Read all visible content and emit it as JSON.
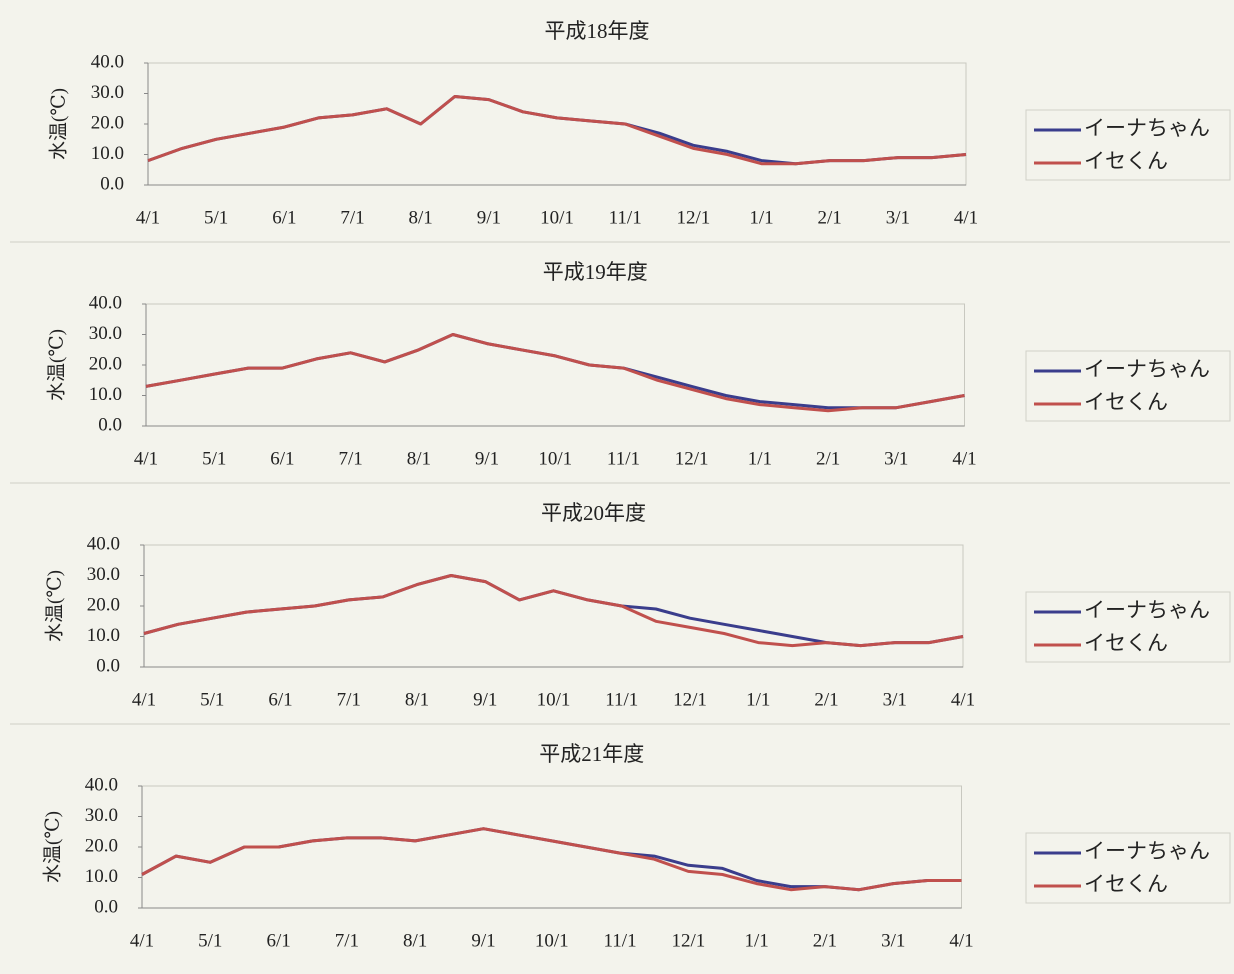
{
  "chart_data": [
    {
      "type": "line",
      "title": "平成18年度",
      "ylabel": "水温(℃)",
      "categories": [
        "4/1",
        null,
        "5/1",
        null,
        "6/1",
        null,
        "7/1",
        null,
        "8/1",
        null,
        "9/1",
        null,
        "10/1",
        null,
        "11/1",
        null,
        "12/1",
        null,
        "1/1",
        null,
        "2/1",
        null,
        "3/1",
        null,
        "4/1"
      ],
      "series": [
        {
          "name": "イーナちゃん",
          "color": "#3a3d8c",
          "values": [
            8,
            12,
            15,
            17,
            19,
            22,
            23,
            25,
            20,
            29,
            28,
            24,
            22,
            21,
            20,
            17,
            13,
            11,
            8,
            7,
            8,
            8,
            9,
            9,
            10
          ]
        },
        {
          "name": "イセくん",
          "color": "#c0504d",
          "values": [
            8,
            12,
            15,
            17,
            19,
            22,
            23,
            25,
            20,
            29,
            28,
            24,
            22,
            21,
            20,
            16,
            12,
            10,
            7,
            7,
            8,
            8,
            9,
            9,
            10
          ]
        }
      ],
      "ylim": [
        0,
        40
      ],
      "yticks": [
        {
          "value": 0,
          "label": "0.0"
        },
        {
          "value": 10,
          "label": "10.0"
        },
        {
          "value": 20,
          "label": "20.0"
        },
        {
          "value": 30,
          "label": "30.0"
        },
        {
          "value": 40,
          "label": "40.0"
        }
      ],
      "legend": "right"
    },
    {
      "type": "line",
      "title": "平成19年度",
      "ylabel": "水温(℃)",
      "categories": [
        "4/1",
        null,
        "5/1",
        null,
        "6/1",
        null,
        "7/1",
        null,
        "8/1",
        null,
        "9/1",
        null,
        "10/1",
        null,
        "11/1",
        null,
        "12/1",
        null,
        "1/1",
        null,
        "2/1",
        null,
        "3/1",
        null,
        "4/1"
      ],
      "series": [
        {
          "name": "イーナちゃん",
          "color": "#3a3d8c",
          "values": [
            13,
            15,
            17,
            19,
            19,
            22,
            24,
            21,
            25,
            30,
            27,
            25,
            23,
            20,
            19,
            16,
            13,
            10,
            8,
            7,
            6,
            6,
            6,
            8,
            10
          ]
        },
        {
          "name": "イセくん",
          "color": "#c0504d",
          "values": [
            13,
            15,
            17,
            19,
            19,
            22,
            24,
            21,
            25,
            30,
            27,
            25,
            23,
            20,
            19,
            15,
            12,
            9,
            7,
            6,
            5,
            6,
            6,
            8,
            10
          ]
        }
      ],
      "ylim": [
        0,
        40
      ],
      "yticks": [
        {
          "value": 0,
          "label": "0.0"
        },
        {
          "value": 10,
          "label": "10.0"
        },
        {
          "value": 20,
          "label": "20.0"
        },
        {
          "value": 30,
          "label": "30.0"
        },
        {
          "value": 40,
          "label": "40.0"
        }
      ],
      "legend": "right"
    },
    {
      "type": "line",
      "title": "平成20年度",
      "ylabel": "水温(℃)",
      "categories": [
        "4/1",
        null,
        "5/1",
        null,
        "6/1",
        null,
        "7/1",
        null,
        "8/1",
        null,
        "9/1",
        null,
        "10/1",
        null,
        "11/1",
        null,
        "12/1",
        null,
        "1/1",
        null,
        "2/1",
        null,
        "3/1",
        null,
        "4/1"
      ],
      "series": [
        {
          "name": "イーナちゃん",
          "color": "#3a3d8c",
          "values": [
            11,
            14,
            16,
            18,
            19,
            20,
            22,
            23,
            27,
            30,
            28,
            22,
            25,
            22,
            20,
            19,
            16,
            14,
            12,
            10,
            8,
            7,
            8,
            8,
            10
          ]
        },
        {
          "name": "イセくん",
          "color": "#c0504d",
          "values": [
            11,
            14,
            16,
            18,
            19,
            20,
            22,
            23,
            27,
            30,
            28,
            22,
            25,
            22,
            20,
            15,
            13,
            11,
            8,
            7,
            8,
            7,
            8,
            8,
            10
          ]
        }
      ],
      "ylim": [
        0,
        40
      ],
      "yticks": [
        {
          "value": 0,
          "label": "0.0"
        },
        {
          "value": 10,
          "label": "10.0"
        },
        {
          "value": 20,
          "label": "20.0"
        },
        {
          "value": 30,
          "label": "30.0"
        },
        {
          "value": 40,
          "label": "40.0"
        }
      ],
      "legend": "right"
    },
    {
      "type": "line",
      "title": "平成21年度",
      "ylabel": "水温(℃)",
      "categories": [
        "4/1",
        null,
        "5/1",
        null,
        "6/1",
        null,
        "7/1",
        null,
        "8/1",
        null,
        "9/1",
        null,
        "10/1",
        null,
        "11/1",
        null,
        "12/1",
        null,
        "1/1",
        null,
        "2/1",
        null,
        "3/1",
        null,
        "4/1"
      ],
      "series": [
        {
          "name": "イーナちゃん",
          "color": "#3a3d8c",
          "values": [
            11,
            17,
            15,
            20,
            20,
            22,
            23,
            23,
            22,
            24,
            26,
            24,
            22,
            20,
            18,
            17,
            14,
            13,
            9,
            7,
            7,
            6,
            8,
            9,
            9
          ]
        },
        {
          "name": "イセくん",
          "color": "#c0504d",
          "values": [
            11,
            17,
            15,
            20,
            20,
            22,
            23,
            23,
            22,
            24,
            26,
            24,
            22,
            20,
            18,
            16,
            12,
            11,
            8,
            6,
            7,
            6,
            8,
            9,
            9
          ]
        }
      ],
      "ylim": [
        0,
        40
      ],
      "yticks": [
        {
          "value": 0,
          "label": "0.0"
        },
        {
          "value": 10,
          "label": "10.0"
        },
        {
          "value": 20,
          "label": "20.0"
        },
        {
          "value": 30,
          "label": "30.0"
        },
        {
          "value": 40,
          "label": "40.0"
        }
      ],
      "legend": "right"
    }
  ]
}
